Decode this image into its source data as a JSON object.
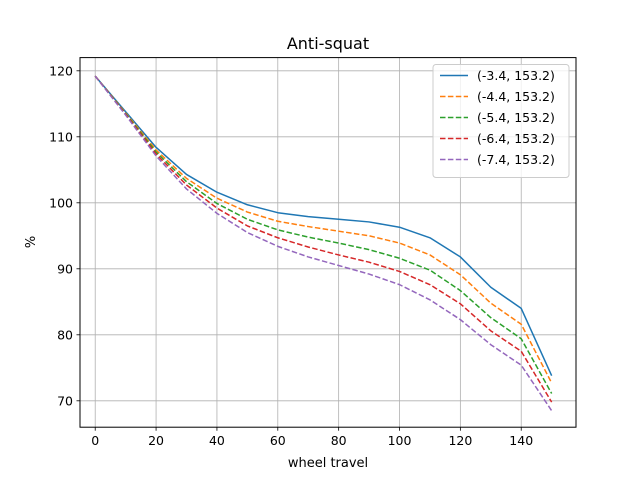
{
  "chart_data": {
    "type": "line",
    "title": "Anti-squat",
    "xlabel": "wheel travel",
    "ylabel": "%",
    "xlim": [
      -5,
      158
    ],
    "ylim": [
      66,
      122
    ],
    "xticks": [
      0,
      20,
      40,
      60,
      80,
      100,
      120,
      140
    ],
    "yticks": [
      70,
      80,
      90,
      100,
      110,
      120
    ],
    "grid": true,
    "legend_position": "top-right",
    "x": [
      0,
      10,
      20,
      30,
      40,
      50,
      60,
      70,
      80,
      90,
      100,
      110,
      120,
      130,
      140,
      150
    ],
    "series": [
      {
        "name": "(-3.4, 153.2)",
        "color": "#1f77b4",
        "dash": "solid",
        "values": [
          119.2,
          113.8,
          108.4,
          104.3,
          101.6,
          99.7,
          98.5,
          97.9,
          97.5,
          97.1,
          96.3,
          94.7,
          91.8,
          87.2,
          84.0,
          73.8
        ]
      },
      {
        "name": "(-4.4, 153.2)",
        "color": "#ff7f0e",
        "dash": "dashed",
        "values": [
          119.2,
          113.6,
          108.0,
          103.7,
          100.7,
          98.6,
          97.2,
          96.4,
          95.7,
          95.0,
          93.9,
          92.1,
          89.1,
          84.8,
          81.6,
          72.7
        ]
      },
      {
        "name": "(-5.4, 153.2)",
        "color": "#2ca02c",
        "dash": "dashed",
        "values": [
          119.2,
          113.5,
          107.7,
          103.2,
          99.9,
          97.5,
          95.9,
          94.8,
          93.9,
          92.9,
          91.6,
          89.8,
          86.7,
          82.6,
          79.4,
          71.1
        ]
      },
      {
        "name": "(-6.4, 153.2)",
        "color": "#d62728",
        "dash": "dashed",
        "values": [
          119.2,
          113.4,
          107.4,
          102.7,
          99.2,
          96.5,
          94.7,
          93.3,
          92.1,
          91.0,
          89.6,
          87.6,
          84.7,
          80.6,
          77.5,
          69.8
        ]
      },
      {
        "name": "(-7.4, 153.2)",
        "color": "#9467bd",
        "dash": "dashed",
        "values": [
          119.2,
          113.3,
          107.1,
          102.1,
          98.4,
          95.5,
          93.4,
          91.8,
          90.5,
          89.2,
          87.6,
          85.3,
          82.3,
          78.5,
          75.4,
          68.5
        ]
      }
    ]
  }
}
